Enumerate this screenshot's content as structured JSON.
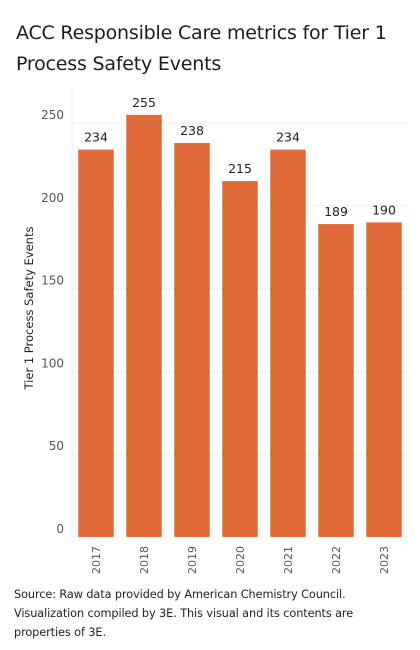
{
  "chart_data": {
    "type": "bar",
    "title": "ACC Responsible Care metrics for Tier 1 Process Safety Events",
    "xlabel": "",
    "ylabel": "Tier 1 Process Safety Events",
    "categories": [
      "2017",
      "2018",
      "2019",
      "2020",
      "2021",
      "2022",
      "2023"
    ],
    "values": [
      234,
      255,
      238,
      215,
      234,
      189,
      190
    ],
    "data_labels": [
      "234",
      "255",
      "238",
      "215",
      "234",
      "189",
      "190"
    ],
    "yticks": [
      0,
      50,
      100,
      150,
      200,
      250
    ],
    "ylim": [
      0,
      270
    ],
    "grid": true,
    "bar_color": "#E06A3A",
    "legend": "none"
  },
  "footer": {
    "source": "Source: Raw data provided by American Chemistry Council. Visualization compiled by 3E. This visual and its contents are properties of 3E."
  }
}
